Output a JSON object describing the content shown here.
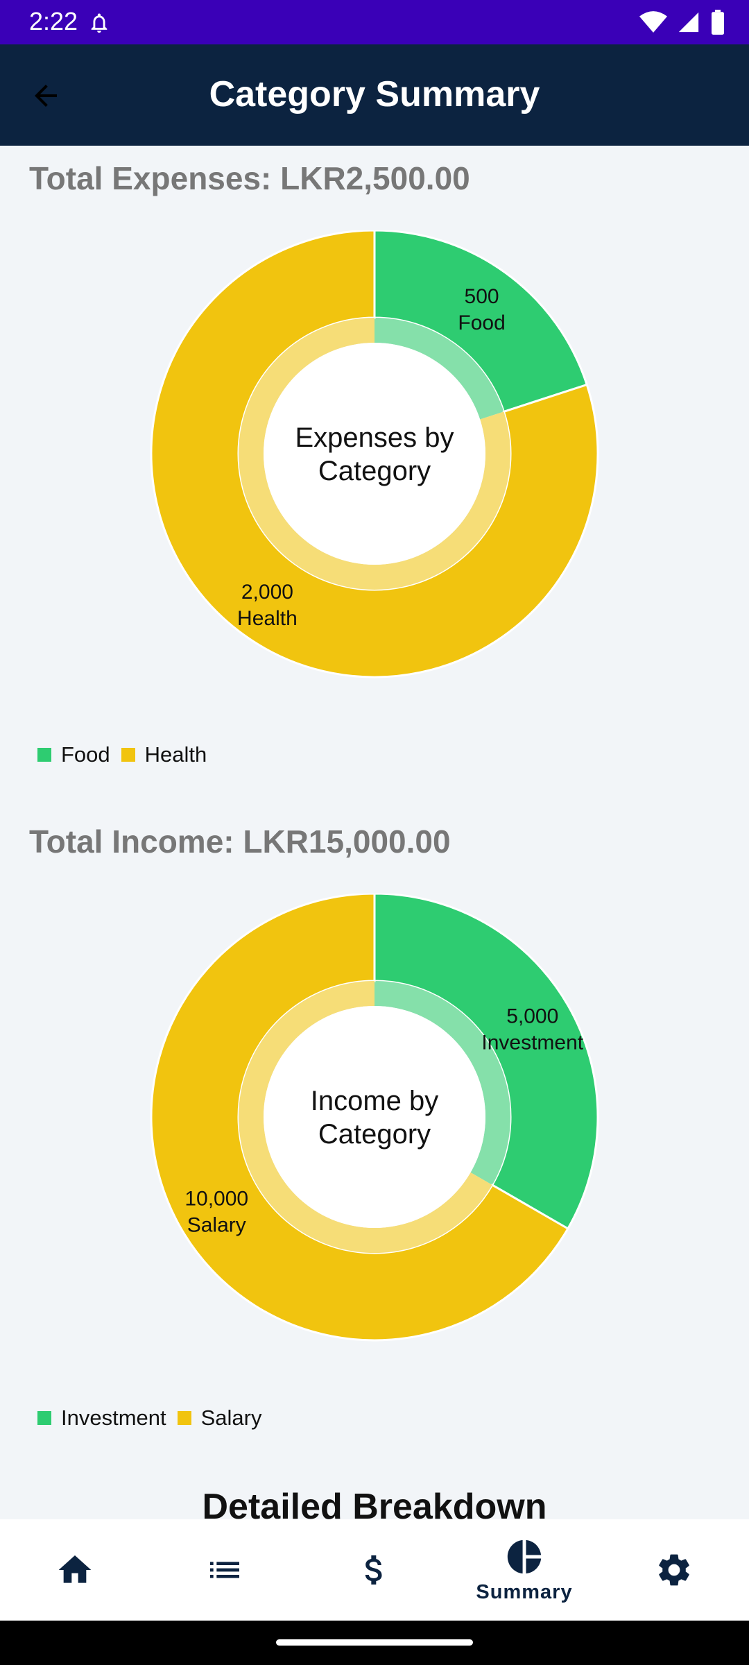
{
  "status_bar": {
    "time": "2:22"
  },
  "app_bar": {
    "title": "Category Summary"
  },
  "sections": [
    {
      "title": "Total Expenses: LKR2,500.00"
    },
    {
      "title": "Total Income: LKR15,000.00"
    }
  ],
  "breakdown_title": "Detailed Breakdown",
  "nav": {
    "summary_label": "Summary"
  },
  "colors": {
    "green": "#2ecc71",
    "yellow": "#f1c40f",
    "green_light": "#85e0aa",
    "yellow_light": "#f6dd77"
  },
  "chart_data": [
    {
      "type": "pie",
      "title": "",
      "center_label": [
        "Expenses by",
        "Category"
      ],
      "categories": [
        "Food",
        "Health"
      ],
      "values": [
        500,
        2000
      ],
      "value_labels": [
        "500",
        "2,000"
      ],
      "legend": "bottom-left"
    },
    {
      "type": "pie",
      "title": "",
      "center_label": [
        "Income by",
        "Category"
      ],
      "categories": [
        "Investment",
        "Salary"
      ],
      "values": [
        5000,
        10000
      ],
      "value_labels": [
        "5,000",
        "10,000"
      ],
      "legend": "bottom-left"
    }
  ]
}
